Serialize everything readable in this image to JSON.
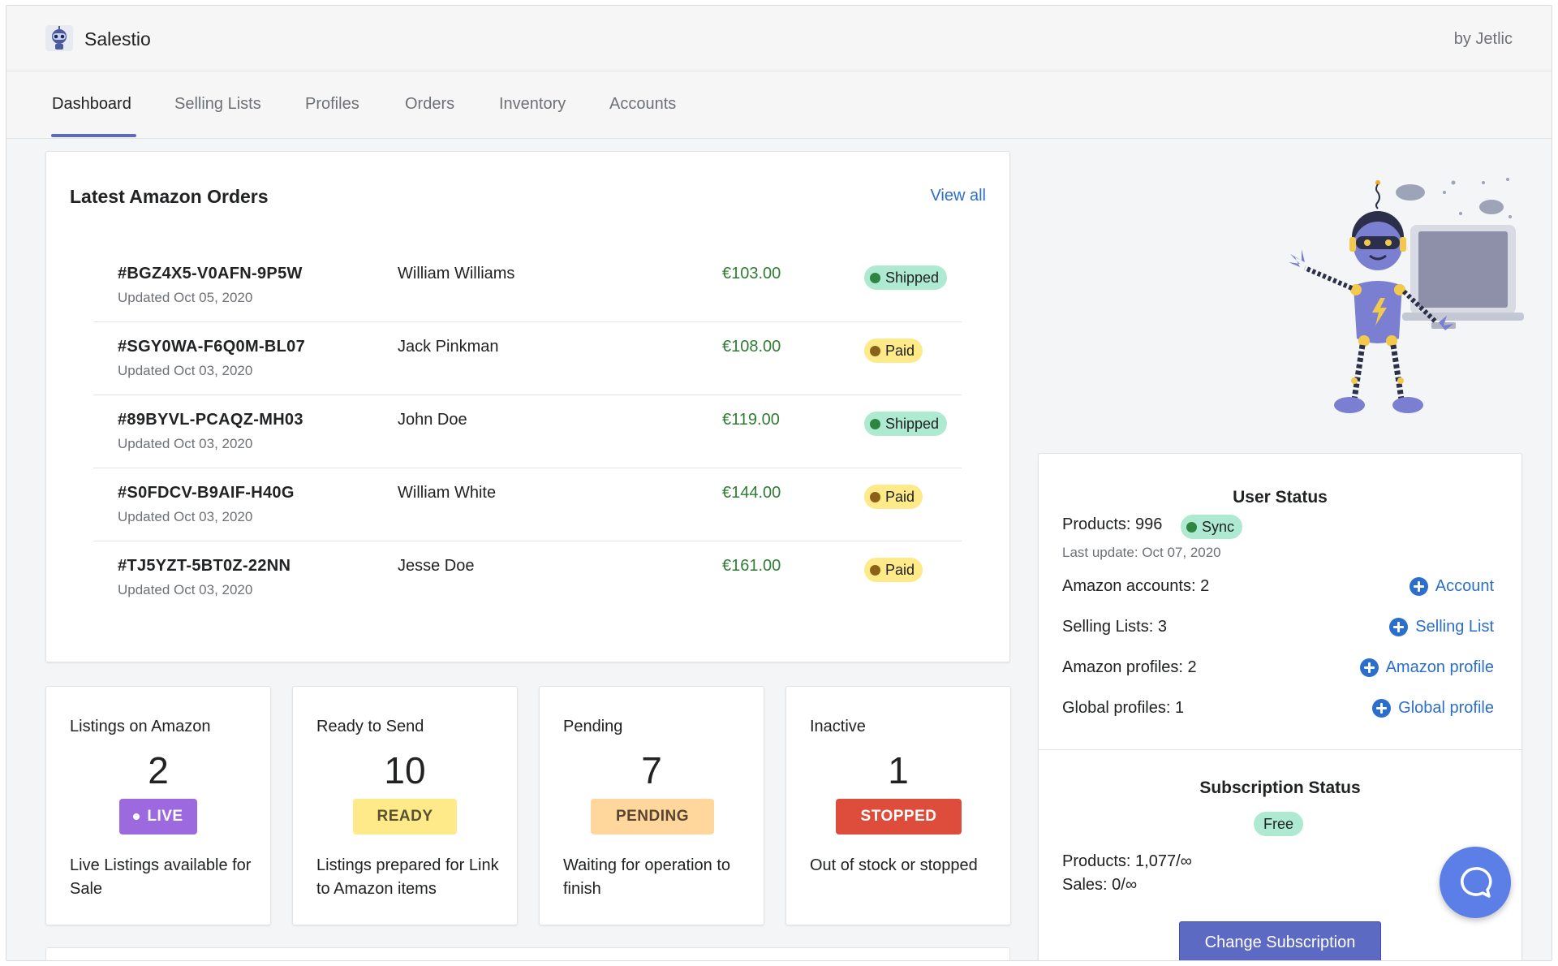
{
  "header": {
    "app_title": "Salestio",
    "byline": "by Jetlic",
    "logo_icon": "robot-logo-icon"
  },
  "tabs": [
    {
      "label": "Dashboard",
      "active": true
    },
    {
      "label": "Selling Lists",
      "active": false
    },
    {
      "label": "Profiles",
      "active": false
    },
    {
      "label": "Orders",
      "active": false
    },
    {
      "label": "Inventory",
      "active": false
    },
    {
      "label": "Accounts",
      "active": false
    }
  ],
  "orders": {
    "title": "Latest Amazon Orders",
    "view_all": "View all",
    "rows": [
      {
        "id": "#BGZ4X5-V0AFN-9P5W",
        "updated": "Updated Oct 05, 2020",
        "customer": "William Williams",
        "amount": "€103.00",
        "status": "Shipped",
        "status_kind": "shipped"
      },
      {
        "id": "#SGY0WA-F6Q0M-BL07",
        "updated": "Updated Oct 03, 2020",
        "customer": "Jack Pinkman",
        "amount": "€108.00",
        "status": "Paid",
        "status_kind": "paid"
      },
      {
        "id": "#89BYVL-PCAQZ-MH03",
        "updated": "Updated Oct 03, 2020",
        "customer": "John Doe",
        "amount": "€119.00",
        "status": "Shipped",
        "status_kind": "shipped"
      },
      {
        "id": "#S0FDCV-B9AIF-H40G",
        "updated": "Updated Oct 03, 2020",
        "customer": "William White",
        "amount": "€144.00",
        "status": "Paid",
        "status_kind": "paid"
      },
      {
        "id": "#TJ5YZT-5BT0Z-22NN",
        "updated": "Updated Oct 03, 2020",
        "customer": "Jesse Doe",
        "amount": "€161.00",
        "status": "Paid",
        "status_kind": "paid"
      }
    ]
  },
  "stats": [
    {
      "title": "Listings on Amazon",
      "value": "2",
      "pill": "LIVE",
      "pill_bg": "#9c6ade",
      "pill_fg": "#ffffff",
      "pill_dot": true,
      "desc": "Live Listings available for Sale"
    },
    {
      "title": "Ready to Send",
      "value": "10",
      "pill": "READY",
      "pill_bg": "#ffea8a",
      "pill_fg": "#595130",
      "pill_dot": false,
      "desc": "Listings prepared for Link to Amazon items"
    },
    {
      "title": "Pending",
      "value": "7",
      "pill": "PENDING",
      "pill_bg": "#ffd79d",
      "pill_fg": "#594430",
      "pill_dot": false,
      "desc": "Waiting for operation to finish"
    },
    {
      "title": "Inactive",
      "value": "1",
      "pill": "STOPPED",
      "pill_bg": "#de3618",
      "pill_fg": "#ffffff",
      "pill_dot": false,
      "desc": "Out of stock or stopped"
    }
  ],
  "user_status": {
    "title": "User Status",
    "products": "Products: 996",
    "sync_label": "Sync",
    "last_update": "Last update: Oct 07, 2020",
    "amazon_accounts": "Amazon accounts: 2",
    "add_account": "Account",
    "selling_lists": "Selling Lists: 3",
    "add_selling_list": "Selling List",
    "amazon_profiles": "Amazon profiles: 2",
    "add_amazon_profile": "Amazon profile",
    "global_profiles": "Global profiles: 1",
    "add_global_profile": "Global profile"
  },
  "subscription": {
    "title": "Subscription Status",
    "plan": "Free",
    "products": "Products: 1,077/∞",
    "sales": "Sales: 0/∞",
    "change_button": "Change Subscription"
  },
  "colors": {
    "accent": "#5c6ac4",
    "link": "#2c6ecb",
    "amount_green": "#2e7d32",
    "chat_button": "#5b7fe6"
  },
  "icons": {
    "chat": "chat-bubble-icon",
    "add": "plus-circle-icon",
    "illustration": "robot-laptop-illustration"
  }
}
